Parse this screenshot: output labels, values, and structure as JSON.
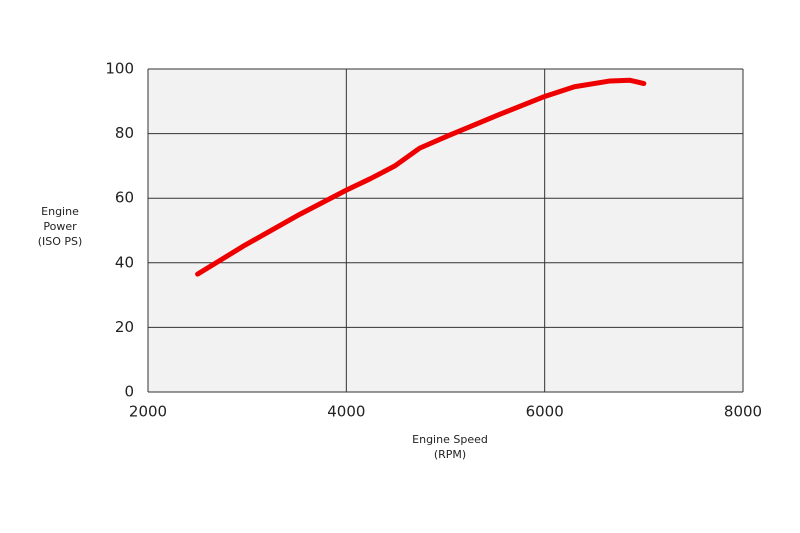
{
  "chart_data": {
    "type": "line",
    "xlabel": [
      "Engine Speed",
      "(RPM)"
    ],
    "ylabel": [
      "Engine",
      "Power",
      "(ISO PS)"
    ],
    "x": [
      2500,
      2980,
      3530,
      4000,
      4240,
      4490,
      4740,
      5040,
      5550,
      6000,
      6300,
      6660,
      6860,
      7000
    ],
    "series": [
      {
        "color": "#ee0000",
        "values": [
          36.5,
          45.5,
          55,
          62.5,
          66,
          70,
          75.5,
          79.5,
          86,
          91.5,
          94.5,
          96.3,
          96.5,
          95.5
        ]
      }
    ],
    "xlim": [
      2000,
      8000
    ],
    "xticks": [
      2000,
      4000,
      6000,
      8000
    ],
    "ylim": [
      0,
      100
    ],
    "yticks": [
      0,
      20,
      40,
      60,
      80,
      100
    ],
    "grid": true
  }
}
